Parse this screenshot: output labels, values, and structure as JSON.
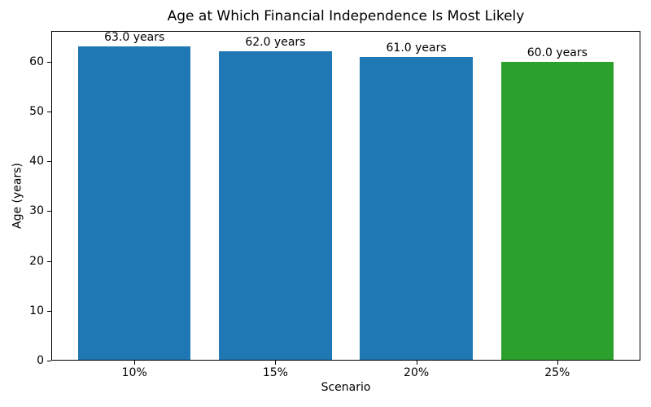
{
  "chart_data": {
    "type": "bar",
    "title": "Age at Which Financial Independence Is Most Likely",
    "xlabel": "Scenario",
    "ylabel": "Age (years)",
    "categories": [
      "10%",
      "15%",
      "20%",
      "25%"
    ],
    "values": [
      63.0,
      62.0,
      61.0,
      60.0
    ],
    "bar_labels": [
      "63.0 years",
      "62.0 years",
      "61.0 years",
      "60.0 years"
    ],
    "bar_colors": [
      "#1f77b4",
      "#1f77b4",
      "#1f77b4",
      "#2ca02c"
    ],
    "accent_blue": "#1f77b4",
    "accent_green": "#2ca02c",
    "ylim": [
      0,
      66.15
    ],
    "yticks": [
      0,
      10,
      20,
      30,
      40,
      50,
      60
    ],
    "bar_width_fraction": 0.8,
    "grid": false,
    "legend_position": "none",
    "background_color": "#ffffff"
  }
}
